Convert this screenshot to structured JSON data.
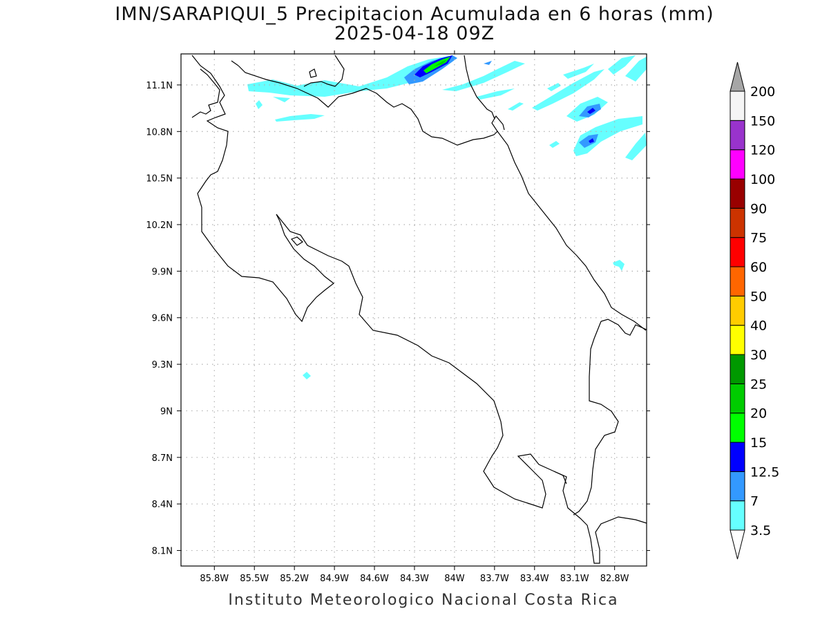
{
  "title": {
    "line1": "IMN/SARAPIQUI_5 Precipitacion Acumulada en 6 horas (mm)",
    "line2": "2025-04-18 09Z"
  },
  "footer": "Instituto Meteorologico Nacional Costa Rica",
  "map": {
    "lon_range": [
      -86.05,
      -82.56
    ],
    "lat_range": [
      8.0,
      11.3
    ],
    "lon_ticks": [
      -85.8,
      -85.5,
      -85.2,
      -84.9,
      -84.6,
      -84.3,
      -84.0,
      -83.7,
      -83.4,
      -83.1,
      -82.8
    ],
    "lon_tick_labels": [
      "85.8W",
      "85.5W",
      "85.2W",
      "84.9W",
      "84.6W",
      "84.3W",
      "84W",
      "83.7W",
      "83.4W",
      "83.1W",
      "82.8W"
    ],
    "lat_ticks": [
      8.1,
      8.4,
      8.7,
      9.0,
      9.3,
      9.6,
      9.9,
      10.2,
      10.5,
      10.8,
      11.1
    ],
    "lat_tick_labels": [
      "8.1N",
      "8.4N",
      "8.7N",
      "9N",
      "9.3N",
      "9.6N",
      "9.9N",
      "10.2N",
      "10.5N",
      "10.8N",
      "11.1N"
    ],
    "grid": true
  },
  "colorbar": {
    "levels": [
      "3.5",
      "7",
      "12.5",
      "15",
      "20",
      "25",
      "30",
      "40",
      "50",
      "60",
      "75",
      "90",
      "100",
      "120",
      "150",
      "200"
    ],
    "colors": [
      "#66ffff",
      "#3399ff",
      "#0000ff",
      "#00ff00",
      "#00cc00",
      "#009900",
      "#ffff00",
      "#ffcc00",
      "#ff6600",
      "#ff0000",
      "#cc3300",
      "#990000",
      "#ff00ff",
      "#9933cc",
      "#f5f5f5"
    ],
    "under_color": "#ffffff",
    "over_color": "#a6a6a6"
  },
  "colors": {
    "coastline": "#000000",
    "grid": "#b0b0b0"
  }
}
